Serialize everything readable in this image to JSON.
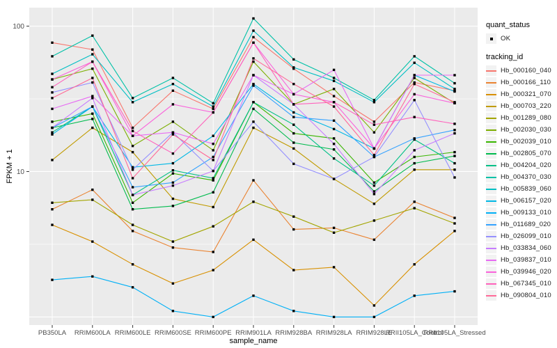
{
  "figure": {
    "panel_bg": "#EBEBEB",
    "grid_color": "#FFFFFF",
    "tick_text_color": "#4D4D4D",
    "tick_mark_color": "#333333",
    "point_color": "#000000",
    "legend_key_bg": "#F2F2F2"
  },
  "axes": {
    "x_title": "sample_name",
    "y_title": "FPKM + 1"
  },
  "legend": {
    "quant_status_title": "quant_status",
    "quant_status_items": [
      {
        "label": "OK",
        "shape": "point-icon"
      }
    ],
    "tracking_title": "tracking_id"
  },
  "chart_data": {
    "type": "line",
    "title": "",
    "xlabel": "sample_name",
    "ylabel": "FPKM + 1",
    "y_scale": "log10",
    "ylim": [
      0.88,
      134
    ],
    "y_major_gridlines": [
      1,
      10,
      100
    ],
    "y_minor_gridlines": [
      3.162,
      31.62
    ],
    "y_ticks": [
      {
        "value": 10,
        "label": "10"
      },
      {
        "value": 100,
        "label": "100"
      }
    ],
    "grid": true,
    "legend_position": "right",
    "quant_status": "OK",
    "categories": [
      "PB350LA",
      "RRIM600LA",
      "RRIM600LE",
      "RRIM600SE",
      "RRIM600PE",
      "RRIM901LA",
      "RRIM928BA",
      "RRIM928LA",
      "RRIM928LE",
      "RRII105LA_Control",
      "RRII105LA_Stressed"
    ],
    "series": [
      {
        "name": "Hb_000160_040",
        "color": "#F8766D",
        "values": [
          77,
          69,
          20,
          36,
          27,
          84,
          51,
          33,
          22,
          41,
          36
        ]
      },
      {
        "name": "Hb_000166_110",
        "color": "#EA8331",
        "values": [
          5.5,
          7.5,
          3.9,
          3.0,
          2.8,
          8.7,
          4.0,
          4.1,
          3.4,
          6.2,
          4.8
        ]
      },
      {
        "name": "Hb_000321_070",
        "color": "#D89000",
        "values": [
          4.3,
          3.3,
          2.3,
          1.7,
          2.1,
          3.4,
          2.1,
          2.2,
          1.2,
          2.3,
          3.9
        ]
      },
      {
        "name": "Hb_000703_220",
        "color": "#C09B00",
        "values": [
          12,
          20,
          13.6,
          6.5,
          5.7,
          20,
          14.4,
          8.9,
          6.0,
          10.3,
          10.3
        ]
      },
      {
        "name": "Hb_001289_080",
        "color": "#A3A500",
        "values": [
          6.1,
          6.4,
          4.3,
          3.3,
          4.2,
          6.2,
          4.9,
          3.8,
          4.6,
          5.6,
          4.4
        ]
      },
      {
        "name": "Hb_002030_030",
        "color": "#7CAE00",
        "values": [
          43,
          51,
          15,
          22,
          14,
          57,
          29,
          37,
          18.6,
          44,
          29.5
        ]
      },
      {
        "name": "Hb_002039_010",
        "color": "#39B600",
        "values": [
          22,
          25,
          6.1,
          9.7,
          8.7,
          30,
          18.3,
          16.9,
          8.4,
          12.6,
          13.6
        ]
      },
      {
        "name": "Hb_002805_070",
        "color": "#00BB4E",
        "values": [
          20,
          23,
          5.5,
          5.8,
          7.2,
          27,
          15.8,
          14.2,
          7.3,
          11.4,
          12.8
        ]
      },
      {
        "name": "Hb_004204_020",
        "color": "#00C087",
        "values": [
          18.6,
          28,
          6.9,
          10.2,
          9.0,
          30,
          21,
          12.3,
          8.0,
          16.6,
          11.4
        ]
      },
      {
        "name": "Hb_004370_030",
        "color": "#00C1A7",
        "values": [
          62,
          86,
          32,
          44,
          29.5,
          113,
          59,
          44,
          31,
          62,
          40.5
        ]
      },
      {
        "name": "Hb_005839_060",
        "color": "#00BFC4",
        "values": [
          47,
          64,
          30,
          40,
          28,
          93,
          52,
          42,
          30,
          56,
          37
        ]
      },
      {
        "name": "Hb_006157_020",
        "color": "#00B8E5",
        "values": [
          18,
          28,
          10.7,
          11.4,
          17.6,
          40,
          25.5,
          19.6,
          14.4,
          46,
          35.5
        ]
      },
      {
        "name": "Hb_009133_010",
        "color": "#00B0F6",
        "values": [
          1.8,
          1.9,
          1.6,
          1.1,
          1.0,
          1.4,
          1.1,
          1.0,
          1.0,
          1.4,
          1.5
        ]
      },
      {
        "name": "Hb_011689_020",
        "color": "#35A2FF",
        "values": [
          20,
          28,
          7.8,
          8.4,
          12.6,
          39,
          23.7,
          22.4,
          12.6,
          16.9,
          19.3
        ]
      },
      {
        "name": "Hb_026099_010",
        "color": "#9590FF",
        "values": [
          35,
          41,
          10.3,
          18.6,
          10.1,
          22,
          11.3,
          8.9,
          12.6,
          31,
          9.1
        ]
      },
      {
        "name": "Hb_033834_060",
        "color": "#C77CFF",
        "values": [
          20,
          32,
          6.9,
          8.0,
          10.1,
          46,
          29,
          15.5,
          7.0,
          14,
          18.3
        ]
      },
      {
        "name": "Hb_039837_010",
        "color": "#E76BF3",
        "values": [
          27,
          33,
          17.6,
          18.6,
          15.5,
          46,
          34,
          50,
          14.4,
          46,
          46
        ]
      },
      {
        "name": "Hb_039946_020",
        "color": "#FA62DB",
        "values": [
          43,
          57,
          17.6,
          29,
          25.5,
          77,
          34,
          30,
          14.4,
          34,
          29.5
        ]
      },
      {
        "name": "Hb_067345_010",
        "color": "#FF62BC",
        "values": [
          38,
          57,
          19,
          13.3,
          25.5,
          77,
          29,
          30,
          21,
          23.7,
          21.3
        ]
      },
      {
        "name": "Hb_090804_010",
        "color": "#FF6A98",
        "values": [
          32,
          44,
          9.0,
          18,
          12,
          60,
          40,
          28,
          13,
          40,
          30
        ]
      }
    ]
  }
}
